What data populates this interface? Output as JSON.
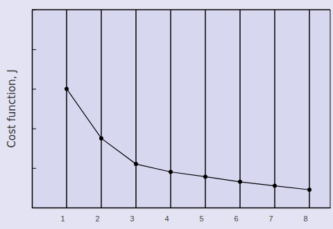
{
  "chart_data": {
    "type": "line",
    "y_label": "Cost function, J",
    "x": [
      1,
      2,
      3,
      4,
      5,
      6,
      7,
      8
    ],
    "values": [
      3.0,
      1.75,
      1.1,
      0.9,
      0.78,
      0.65,
      0.55,
      0.45
    ],
    "color": "#000000",
    "marker": "circle",
    "xlim": [
      0,
      8.6
    ],
    "xticks": [
      1,
      2,
      3,
      4,
      5,
      6,
      7,
      8
    ],
    "ylim": [
      0,
      5
    ],
    "yticks": [
      0,
      1,
      2,
      3,
      4,
      5
    ],
    "grid": true,
    "tick_labels": "x"
  }
}
